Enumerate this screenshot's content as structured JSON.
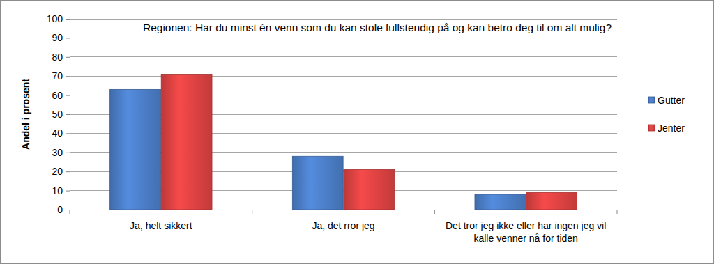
{
  "chart_data": {
    "type": "bar",
    "title": "Regionen: Har du minst én venn som du kan stole fullstendig på og kan betro deg til om alt mulig?",
    "y_label": "Andel i prosent",
    "categories": [
      "Ja, helt sikkert",
      "Ja, det rror jeg",
      "Det tror jeg ikke eller har ingen jeg vil kalle venner nå for tiden"
    ],
    "series": [
      {
        "name": "Gutter",
        "color": "#4a7cc4",
        "values": [
          63,
          28,
          8
        ]
      },
      {
        "name": "Jenter",
        "color": "#d94141",
        "values": [
          71,
          21,
          9
        ]
      }
    ],
    "ylim": [
      0,
      100
    ],
    "yticks": [
      0,
      10,
      20,
      30,
      40,
      50,
      60,
      70,
      80,
      90,
      100
    ],
    "grid": true,
    "legend": "right"
  }
}
